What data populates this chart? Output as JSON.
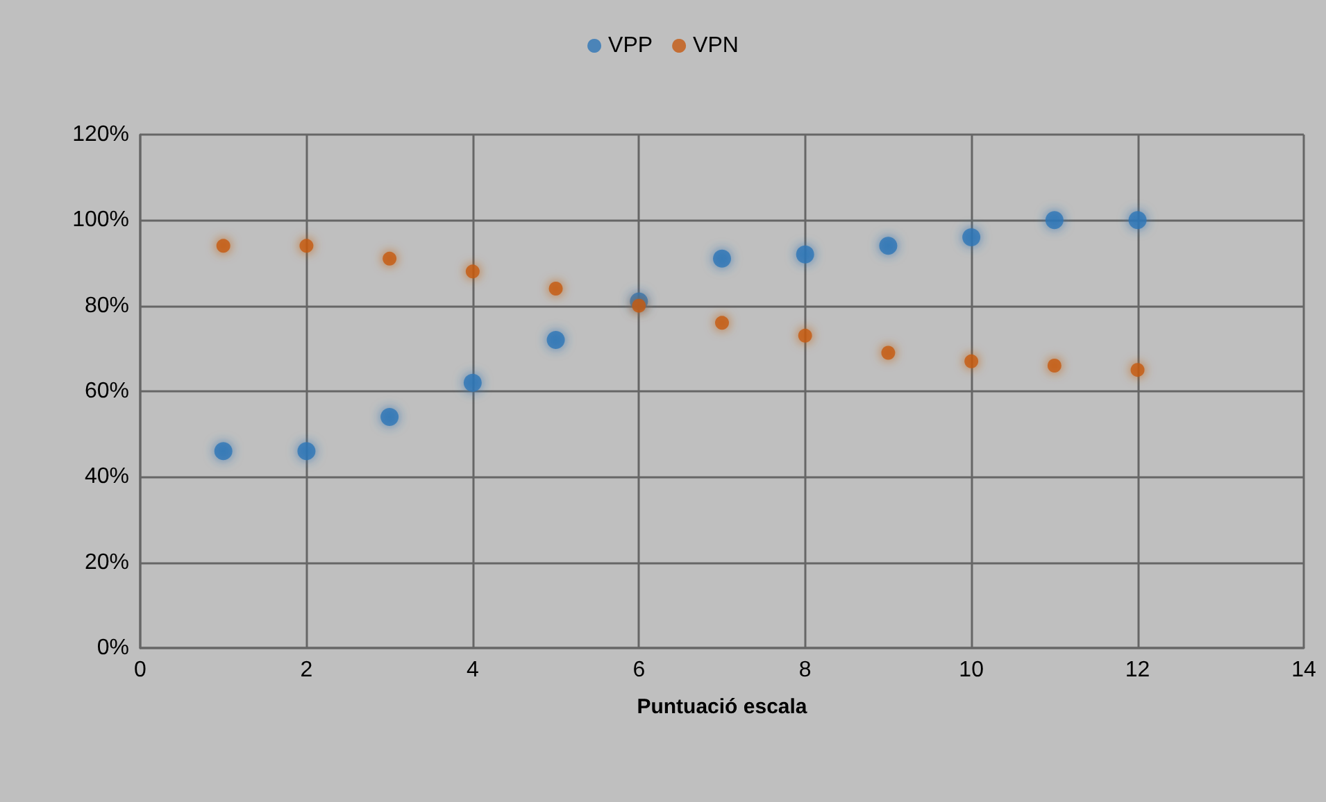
{
  "chart_data": {
    "type": "scatter",
    "xlabel": "Puntuació escala",
    "x": [
      1,
      2,
      3,
      4,
      5,
      6,
      7,
      8,
      9,
      10,
      11,
      12
    ],
    "series": [
      {
        "name": "VPP",
        "color": "#2e75b6",
        "values": [
          46,
          46,
          54,
          62,
          72,
          81,
          91,
          92,
          94,
          96,
          100,
          100
        ]
      },
      {
        "name": "VPN",
        "color": "#c55a11",
        "values": [
          94,
          94,
          91,
          88,
          84,
          80,
          76,
          73,
          69,
          67,
          66,
          65
        ]
      }
    ],
    "xlim": [
      0,
      14
    ],
    "xticks": [
      0,
      2,
      4,
      6,
      8,
      10,
      12,
      14
    ],
    "ylim": [
      0,
      120
    ],
    "yticks": [
      {
        "value": 0,
        "label": "0%"
      },
      {
        "value": 20,
        "label": "20%"
      },
      {
        "value": 40,
        "label": "40%"
      },
      {
        "value": 60,
        "label": "60%"
      },
      {
        "value": 80,
        "label": "80%"
      },
      {
        "value": 100,
        "label": "100%"
      },
      {
        "value": 120,
        "label": "120%"
      }
    ],
    "grid": true,
    "legend": "top",
    "marker": "circle"
  }
}
